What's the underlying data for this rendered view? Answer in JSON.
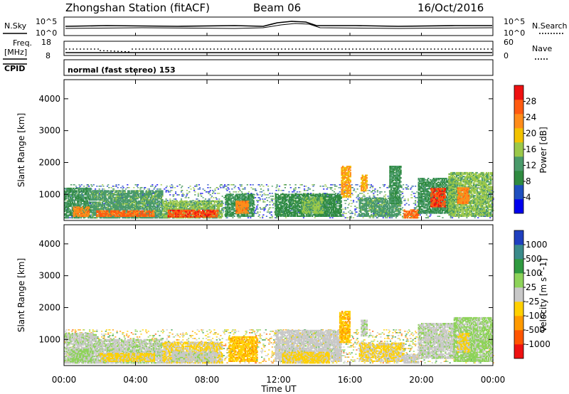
{
  "header": {
    "station": "Zhongshan Station (fitACF)",
    "beam": "Beam 06",
    "date": "16/Oct/2016"
  },
  "panels": {
    "sky_label": "N.Sky",
    "search_label": "N.Search",
    "sky_left_top": "10^5",
    "sky_left_bottom": "10^0",
    "sky_right_top": "10^5",
    "sky_right_bottom": "10^0",
    "freq_label_1": "Freq.",
    "freq_label_2": "[MHz]",
    "freq_top": "18",
    "freq_bottom": "8",
    "nave_label": "Nave",
    "nave_top": "60",
    "nave_bottom": "0",
    "cpid_label": "CPID",
    "cpid_text": "normal (fast stereo) 153"
  },
  "colors": {
    "power": [
      "#0000ee",
      "#1f4fbf",
      "#2f8a40",
      "#4a9a6a",
      "#9bc84a",
      "#f2c200",
      "#ff8c1a",
      "#ff5a10",
      "#ee1111"
    ],
    "velocity": [
      "#ee1111",
      "#ff5500",
      "#ff9a00",
      "#ffd000",
      "#c8c8c8",
      "#8ed35a",
      "#2f9a40",
      "#3a8a8a",
      "#1f3fbf"
    ]
  },
  "chart_data": [
    {
      "type": "heatmap",
      "title": "",
      "ylabel": "Slant Range [km]",
      "xlabel": "",
      "ylim": [
        180,
        4600
      ],
      "xlim": [
        0,
        24
      ],
      "y_ticks": [
        "1000",
        "2000",
        "3000",
        "4000"
      ],
      "x_ticks": [
        "00:00",
        "04:00",
        "08:00",
        "12:00",
        "16:00",
        "20:00",
        "00:00"
      ],
      "colorbar": {
        "label": "Power [dB]",
        "ticks": [
          "4",
          "8",
          "12",
          "16",
          "20",
          "24",
          "28"
        ],
        "range": [
          0,
          30
        ]
      },
      "regions": [
        {
          "t0": 0.0,
          "t1": 1.5,
          "r0": 250,
          "r1": 1200,
          "level": 10
        },
        {
          "t0": 0.5,
          "t1": 1.4,
          "r0": 300,
          "r1": 600,
          "level": 22
        },
        {
          "t0": 1.5,
          "t1": 5.5,
          "r0": 250,
          "r1": 1100,
          "level": 12
        },
        {
          "t0": 1.8,
          "t1": 5.0,
          "r0": 300,
          "r1": 500,
          "level": 24
        },
        {
          "t0": 5.5,
          "t1": 8.8,
          "r0": 250,
          "r1": 800,
          "level": 14
        },
        {
          "t0": 5.8,
          "t1": 8.6,
          "r0": 280,
          "r1": 500,
          "level": 26
        },
        {
          "t0": 9.0,
          "t1": 10.6,
          "r0": 300,
          "r1": 1000,
          "level": 10
        },
        {
          "t0": 9.6,
          "t1": 10.3,
          "r0": 400,
          "r1": 800,
          "level": 22
        },
        {
          "t0": 11.8,
          "t1": 15.5,
          "r0": 300,
          "r1": 1000,
          "level": 9
        },
        {
          "t0": 13.3,
          "t1": 14.5,
          "r0": 400,
          "r1": 900,
          "level": 14
        },
        {
          "t0": 15.5,
          "t1": 16.0,
          "r0": 900,
          "r1": 1900,
          "level": 20
        },
        {
          "t0": 16.6,
          "t1": 16.9,
          "r0": 1100,
          "r1": 1600,
          "level": 20
        },
        {
          "t0": 16.5,
          "t1": 18.8,
          "r0": 300,
          "r1": 900,
          "level": 12
        },
        {
          "t0": 18.2,
          "t1": 18.8,
          "r0": 700,
          "r1": 1900,
          "level": 10
        },
        {
          "t0": 19.0,
          "t1": 19.8,
          "r0": 250,
          "r1": 500,
          "level": 24
        },
        {
          "t0": 19.8,
          "t1": 21.8,
          "r0": 400,
          "r1": 1500,
          "level": 10
        },
        {
          "t0": 20.5,
          "t1": 21.3,
          "r0": 600,
          "r1": 1200,
          "level": 26
        },
        {
          "t0": 21.5,
          "t1": 23.9,
          "r0": 300,
          "r1": 1700,
          "level": 14
        },
        {
          "t0": 22.0,
          "t1": 22.6,
          "r0": 700,
          "r1": 1200,
          "level": 22
        }
      ]
    },
    {
      "type": "heatmap",
      "title": "",
      "ylabel": "Slant Range [km]",
      "xlabel": "Time UT",
      "ylim": [
        180,
        4600
      ],
      "xlim": [
        0,
        24
      ],
      "y_ticks": [
        "1000",
        "2000",
        "3000",
        "4000"
      ],
      "x_ticks": [
        "00:00",
        "04:00",
        "08:00",
        "12:00",
        "16:00",
        "20:00",
        "00:00"
      ],
      "colorbar": {
        "label": "Velocity [m s^-1]",
        "ticks": [
          "-1000",
          "-500",
          "-100",
          "-25",
          "25",
          "100",
          "500",
          "1000"
        ],
        "range": [
          -1200,
          1200
        ]
      },
      "regions": [
        {
          "t0": 0.0,
          "t1": 1.8,
          "r0": 250,
          "r1": 1200,
          "level": 60
        },
        {
          "t0": 0.3,
          "t1": 1.6,
          "r0": 300,
          "r1": 700,
          "level": 200
        },
        {
          "t0": 1.8,
          "t1": 5.5,
          "r0": 250,
          "r1": 1000,
          "level": 80
        },
        {
          "t0": 2.0,
          "t1": 5.0,
          "r0": 300,
          "r1": 550,
          "level": -200
        },
        {
          "t0": 5.5,
          "t1": 8.8,
          "r0": 250,
          "r1": 900,
          "level": -150
        },
        {
          "t0": 6.0,
          "t1": 8.4,
          "r0": 300,
          "r1": 600,
          "level": 60
        },
        {
          "t0": 9.2,
          "t1": 10.8,
          "r0": 300,
          "r1": 1100,
          "level": -350
        },
        {
          "t0": 11.8,
          "t1": 15.5,
          "r0": 300,
          "r1": 1300,
          "level": 0
        },
        {
          "t0": 12.2,
          "t1": 14.8,
          "r0": 250,
          "r1": 600,
          "level": -200
        },
        {
          "t0": 15.4,
          "t1": 16.0,
          "r0": 900,
          "r1": 1900,
          "level": -350
        },
        {
          "t0": 16.6,
          "t1": 16.9,
          "r0": 1100,
          "r1": 1600,
          "level": 80
        },
        {
          "t0": 16.5,
          "t1": 19.0,
          "r0": 300,
          "r1": 900,
          "level": -150
        },
        {
          "t0": 19.0,
          "t1": 19.8,
          "r0": 250,
          "r1": 500,
          "level": 0
        },
        {
          "t0": 19.8,
          "t1": 21.8,
          "r0": 400,
          "r1": 1500,
          "level": 60
        },
        {
          "t0": 21.8,
          "t1": 23.9,
          "r0": 300,
          "r1": 1700,
          "level": 200
        },
        {
          "t0": 22.0,
          "t1": 22.6,
          "r0": 600,
          "r1": 1200,
          "level": -150
        }
      ]
    }
  ]
}
